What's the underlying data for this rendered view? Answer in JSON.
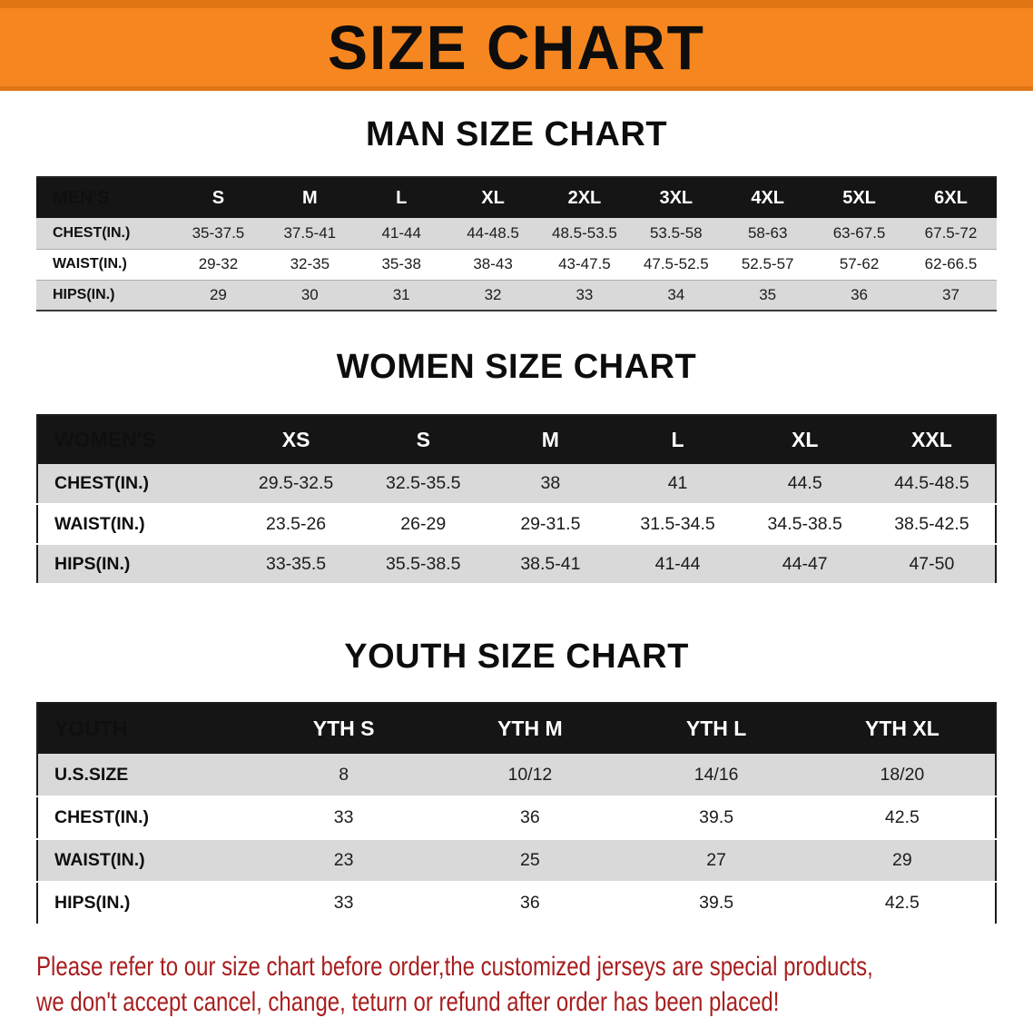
{
  "banner": {
    "title": "SIZE CHART"
  },
  "men": {
    "heading": "MAN SIZE CHART",
    "table": {
      "header": [
        "MEN'S",
        "S",
        "M",
        "L",
        "XL",
        "2XL",
        "3XL",
        "4XL",
        "5XL",
        "6XL"
      ],
      "rows": [
        [
          "CHEST(IN.)",
          "35-37.5",
          "37.5-41",
          "41-44",
          "44-48.5",
          "48.5-53.5",
          "53.5-58",
          "58-63",
          "63-67.5",
          "67.5-72"
        ],
        [
          "WAIST(IN.)",
          "29-32",
          "32-35",
          "35-38",
          "38-43",
          "43-47.5",
          "47.5-52.5",
          "52.5-57",
          "57-62",
          "62-66.5"
        ],
        [
          "HIPS(IN.)",
          "29",
          "30",
          "31",
          "32",
          "33",
          "34",
          "35",
          "36",
          "37"
        ]
      ]
    }
  },
  "women": {
    "heading": "WOMEN SIZE CHART",
    "table": {
      "header": [
        "WOMEN'S",
        "XS",
        "S",
        "M",
        "L",
        "XL",
        "XXL"
      ],
      "rows": [
        [
          "CHEST(IN.)",
          "29.5-32.5",
          "32.5-35.5",
          "38",
          "41",
          "44.5",
          "44.5-48.5"
        ],
        [
          "WAIST(IN.)",
          "23.5-26",
          "26-29",
          "29-31.5",
          "31.5-34.5",
          "34.5-38.5",
          "38.5-42.5"
        ],
        [
          "HIPS(IN.)",
          "33-35.5",
          "35.5-38.5",
          "38.5-41",
          "41-44",
          "44-47",
          "47-50"
        ]
      ]
    }
  },
  "youth": {
    "heading": "YOUTH SIZE CHART",
    "table": {
      "header": [
        "YOUTH",
        "YTH S",
        "YTH M",
        "YTH L",
        "YTH XL"
      ],
      "rows": [
        [
          "U.S.SIZE",
          "8",
          "10/12",
          "14/16",
          "18/20"
        ],
        [
          "CHEST(IN.)",
          "33",
          "36",
          "39.5",
          "42.5"
        ],
        [
          "WAIST(IN.)",
          "23",
          "25",
          "27",
          "29"
        ],
        [
          "HIPS(IN.)",
          "33",
          "36",
          "39.5",
          "42.5"
        ]
      ]
    }
  },
  "disclaimer": {
    "line1": "Please refer to our size chart before order,the customized jerseys are special products,",
    "line2": "we don't accept cancel, change, teturn or refund after order has been placed!"
  },
  "colors": {
    "banner_orange": "#f6861f",
    "banner_edge": "#df7513",
    "header_black": "#151515",
    "row_gray": "#d9d9d9",
    "disclaimer_red": "#a81e1e"
  }
}
